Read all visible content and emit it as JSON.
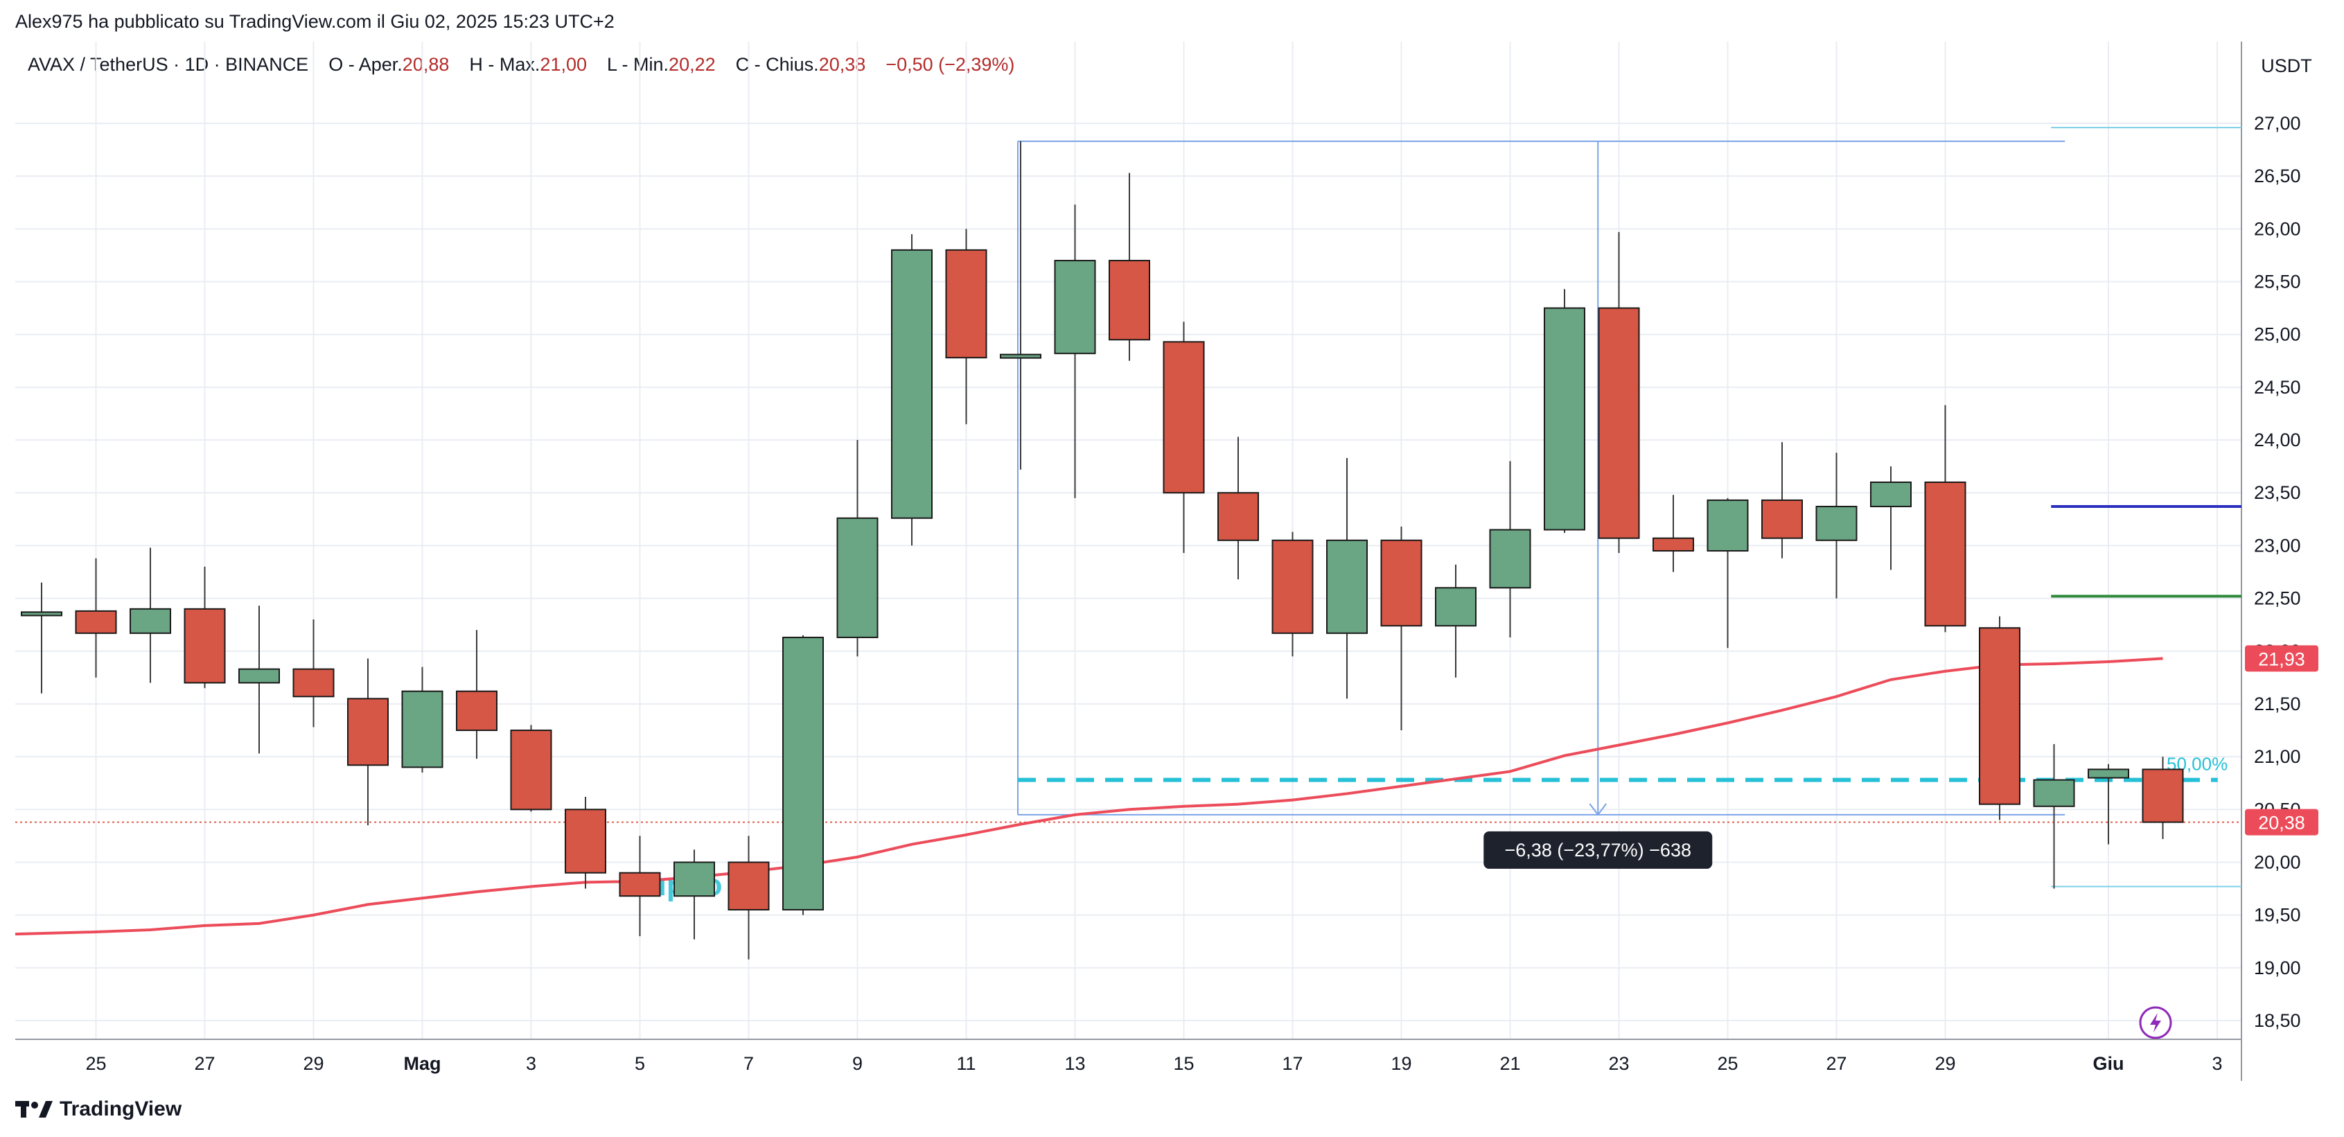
{
  "header": {
    "published": "Alex975 ha pubblicato su TradingView.com il Giu 02, 2025 15:23 UTC+2"
  },
  "symbol_bar": {
    "pair": "AVAX / TetherUS",
    "interval": "1D",
    "exchange": "BINANCE",
    "open_label": "O - Aper.",
    "open_value": "20,88",
    "high_label": "H - Max.",
    "high_value": "21,00",
    "low_label": "L - Min.",
    "low_value": "20,22",
    "close_label": "C - Chius.",
    "close_value": "20,38",
    "change": "−0,50 (−2,39%)"
  },
  "footer": {
    "brand": "TradingView"
  },
  "chart_data": {
    "type": "candlestick",
    "currency_label": "USDT",
    "ylim": [
      18.3,
      27.5
    ],
    "y_ticks": [
      "27,00",
      "26,50",
      "26,00",
      "25,50",
      "25,00",
      "24,50",
      "24,00",
      "23,50",
      "23,00",
      "22,50",
      "22,00",
      "21,50",
      "21,00",
      "20,50",
      "20,00",
      "19,50",
      "19,00",
      "18,50"
    ],
    "y_tick_values": [
      27,
      26.5,
      26,
      25.5,
      25,
      24.5,
      24,
      23.5,
      23,
      22.5,
      22,
      21.5,
      21,
      20.5,
      20,
      19.5,
      19,
      18.5
    ],
    "x_ticks": [
      {
        "label": "25",
        "i": 1
      },
      {
        "label": "27",
        "i": 3
      },
      {
        "label": "29",
        "i": 5
      },
      {
        "label": "Mag",
        "i": 7,
        "bold": true
      },
      {
        "label": "3",
        "i": 9
      },
      {
        "label": "5",
        "i": 11
      },
      {
        "label": "7",
        "i": 13
      },
      {
        "label": "9",
        "i": 15
      },
      {
        "label": "11",
        "i": 17
      },
      {
        "label": "13",
        "i": 19
      },
      {
        "label": "15",
        "i": 21
      },
      {
        "label": "17",
        "i": 23
      },
      {
        "label": "19",
        "i": 25
      },
      {
        "label": "21",
        "i": 27
      },
      {
        "label": "23",
        "i": 29
      },
      {
        "label": "25",
        "i": 31
      },
      {
        "label": "27",
        "i": 33
      },
      {
        "label": "29",
        "i": 35
      },
      {
        "label": "Giu",
        "i": 38,
        "bold": true
      },
      {
        "label": "3",
        "i": 40
      }
    ],
    "candles": [
      {
        "o": 22.35,
        "h": 22.65,
        "l": 21.6,
        "c": 22.37
      },
      {
        "o": 22.38,
        "h": 22.88,
        "l": 21.75,
        "c": 22.17
      },
      {
        "o": 22.17,
        "h": 22.98,
        "l": 21.7,
        "c": 22.4
      },
      {
        "o": 22.4,
        "h": 22.8,
        "l": 21.65,
        "c": 21.7
      },
      {
        "o": 21.7,
        "h": 22.43,
        "l": 21.03,
        "c": 21.83
      },
      {
        "o": 21.83,
        "h": 22.3,
        "l": 21.28,
        "c": 21.57
      },
      {
        "o": 21.55,
        "h": 21.93,
        "l": 20.35,
        "c": 20.92
      },
      {
        "o": 20.9,
        "h": 21.85,
        "l": 20.85,
        "c": 21.62
      },
      {
        "o": 21.62,
        "h": 22.2,
        "l": 20.98,
        "c": 21.25
      },
      {
        "o": 21.25,
        "h": 21.3,
        "l": 20.48,
        "c": 20.5
      },
      {
        "o": 20.5,
        "h": 20.62,
        "l": 19.75,
        "c": 19.9
      },
      {
        "o": 19.9,
        "h": 20.25,
        "l": 19.3,
        "c": 19.68
      },
      {
        "o": 19.68,
        "h": 20.12,
        "l": 19.27,
        "c": 20.0
      },
      {
        "o": 20.0,
        "h": 20.25,
        "l": 19.08,
        "c": 19.55
      },
      {
        "o": 19.55,
        "h": 22.15,
        "l": 19.5,
        "c": 22.13
      },
      {
        "o": 22.13,
        "h": 24.0,
        "l": 21.95,
        "c": 23.26
      },
      {
        "o": 23.26,
        "h": 25.95,
        "l": 23.0,
        "c": 25.8
      },
      {
        "o": 25.8,
        "h": 26.0,
        "l": 24.15,
        "c": 24.78
      },
      {
        "o": 24.78,
        "h": 26.83,
        "l": 23.72,
        "c": 24.81
      },
      {
        "o": 24.82,
        "h": 26.23,
        "l": 23.45,
        "c": 25.7
      },
      {
        "o": 25.7,
        "h": 26.53,
        "l": 24.75,
        "c": 24.95
      },
      {
        "o": 24.93,
        "h": 25.12,
        "l": 22.93,
        "c": 23.5
      },
      {
        "o": 23.5,
        "h": 24.03,
        "l": 22.68,
        "c": 23.05
      },
      {
        "o": 23.05,
        "h": 23.13,
        "l": 21.95,
        "c": 22.17
      },
      {
        "o": 22.17,
        "h": 23.83,
        "l": 21.55,
        "c": 23.05
      },
      {
        "o": 23.05,
        "h": 23.18,
        "l": 21.25,
        "c": 22.24
      },
      {
        "o": 22.24,
        "h": 22.82,
        "l": 21.75,
        "c": 22.6
      },
      {
        "o": 22.6,
        "h": 23.8,
        "l": 22.13,
        "c": 23.15
      },
      {
        "o": 23.15,
        "h": 25.43,
        "l": 23.12,
        "c": 25.25
      },
      {
        "o": 25.25,
        "h": 25.97,
        "l": 22.93,
        "c": 23.07
      },
      {
        "o": 23.07,
        "h": 23.48,
        "l": 22.75,
        "c": 22.95
      },
      {
        "o": 22.95,
        "h": 23.45,
        "l": 22.03,
        "c": 23.43
      },
      {
        "o": 23.43,
        "h": 23.98,
        "l": 22.88,
        "c": 23.07
      },
      {
        "o": 23.05,
        "h": 23.88,
        "l": 22.5,
        "c": 23.37
      },
      {
        "o": 23.37,
        "h": 23.75,
        "l": 22.77,
        "c": 23.6
      },
      {
        "o": 23.6,
        "h": 24.33,
        "l": 22.18,
        "c": 22.24
      },
      {
        "o": 22.22,
        "h": 22.33,
        "l": 20.4,
        "c": 20.55
      },
      {
        "o": 20.53,
        "h": 21.12,
        "l": 19.75,
        "c": 20.78
      },
      {
        "o": 20.8,
        "h": 20.93,
        "l": 20.17,
        "c": 20.88
      },
      {
        "o": 20.88,
        "h": 21.0,
        "l": 20.22,
        "c": 20.38
      }
    ],
    "moving_average": [
      19.32,
      19.34,
      19.36,
      19.4,
      19.42,
      19.5,
      19.6,
      19.66,
      19.72,
      19.77,
      19.81,
      19.82,
      19.86,
      19.91,
      19.97,
      20.05,
      20.17,
      20.26,
      20.36,
      20.45,
      20.5,
      20.53,
      20.55,
      20.59,
      20.65,
      20.72,
      20.79,
      20.86,
      21.01,
      21.11,
      21.21,
      21.32,
      21.44,
      21.57,
      21.73,
      21.81,
      21.87,
      21.88,
      21.9,
      21.93
    ],
    "ma_last_value": "21,93",
    "last_price_value": "20,38",
    "last_price": 20.38,
    "ma_last": 21.93,
    "measure": {
      "start_i": 18,
      "end_i": 40,
      "top": 26.83,
      "bottom": 20.45,
      "label": "−6,38 (−23,77%) −638"
    },
    "hlines": [
      {
        "i0": 36.5,
        "i1": 41.5,
        "y": 26.96,
        "color": "#7ed0e8",
        "width": 2
      },
      {
        "i0": 36.5,
        "i1": 41.5,
        "y": 23.37,
        "color": "#2a2ebd",
        "width": 4
      },
      {
        "i0": 36.5,
        "i1": 41.5,
        "y": 22.52,
        "color": "#2e8a3a",
        "width": 4
      },
      {
        "i0": 36.5,
        "i1": 41.5,
        "y": 19.77,
        "color": "#7ed0e8",
        "width": 2
      }
    ],
    "fib_line": {
      "i0": 18,
      "i1": 39.5,
      "y": 20.78,
      "label": "50,00%",
      "color": "#26c0d6"
    },
    "overlay_text": {
      "text": "upbo",
      "color": "#26c0d6"
    },
    "colors": {
      "up": "#6aa584",
      "down": "#d65745",
      "outline": "#1a1a1a",
      "ma": "#ec4c5a",
      "last_price_line": "#e06050",
      "measure": "#7aa3e8",
      "label_bg": "#1e222d"
    }
  }
}
